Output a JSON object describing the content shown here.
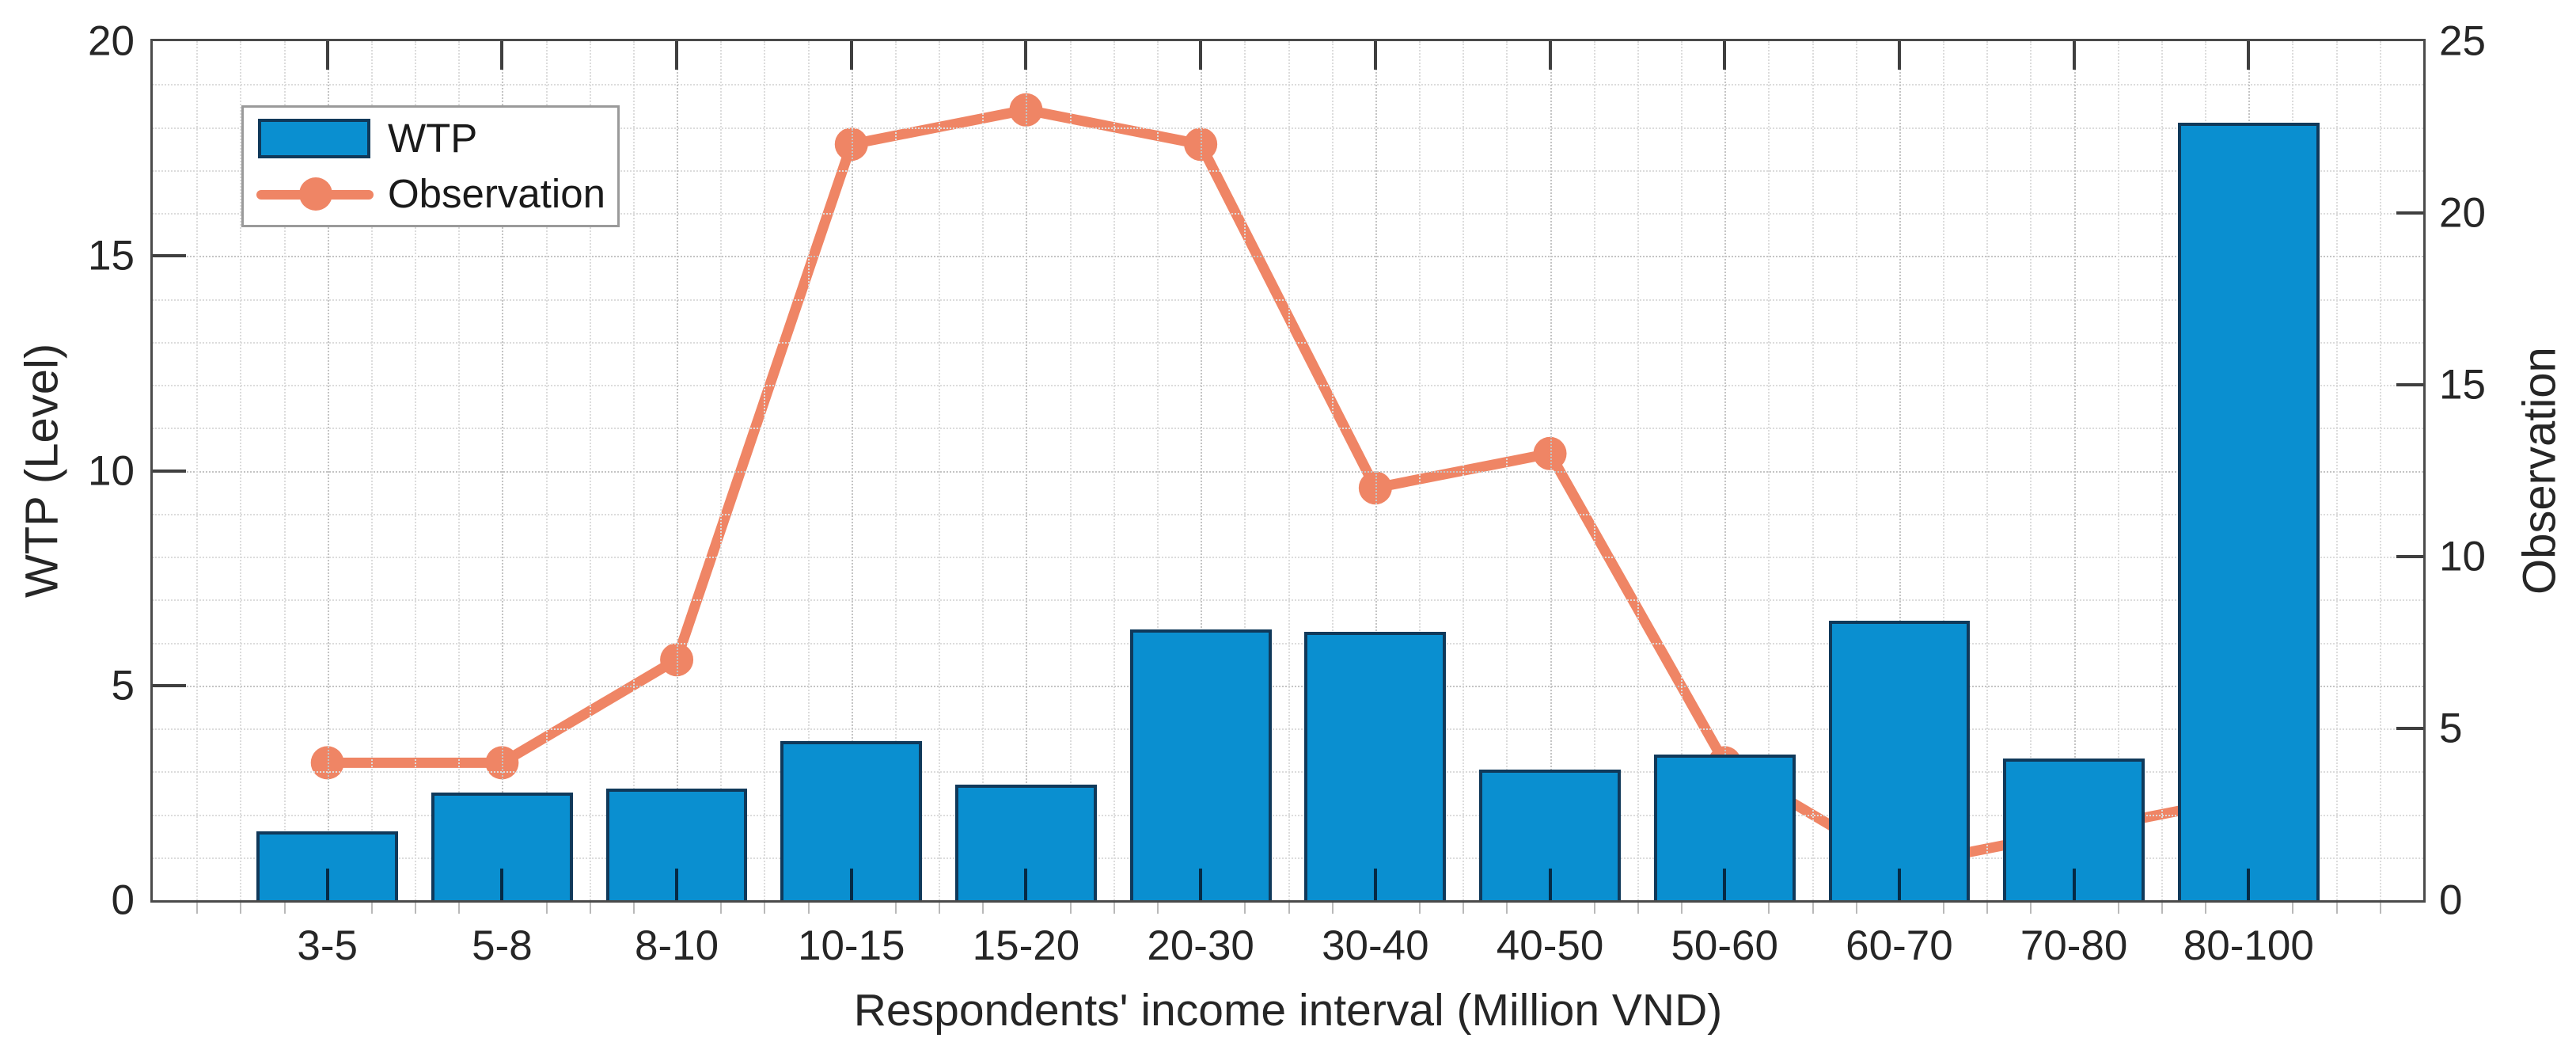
{
  "chart_data": {
    "type": "bar",
    "title": "",
    "categories": [
      "3-5",
      "5-8",
      "8-10",
      "10-15",
      "15-20",
      "20-30",
      "30-40",
      "40-50",
      "50-60",
      "60-70",
      "70-80",
      "80-100"
    ],
    "series": [
      {
        "name": "WTP",
        "type": "bar",
        "axis": "left",
        "values": [
          1.6,
          2.5,
          2.6,
          3.7,
          2.7,
          6.3,
          6.25,
          3.05,
          3.4,
          6.5,
          3.3,
          18.1
        ]
      },
      {
        "name": "Observation",
        "type": "line",
        "axis": "right",
        "values": [
          4,
          4,
          7,
          22,
          23,
          22,
          12,
          13,
          4,
          1,
          2,
          3
        ]
      }
    ],
    "xlabel": "Respondents' income interval (Million VND)",
    "left_axis": {
      "label": "WTP (Level)",
      "min": 0,
      "max": 20,
      "ticks": [
        0,
        5,
        10,
        15,
        20
      ],
      "minor_step": 1
    },
    "right_axis": {
      "label": "Observation",
      "min": 0,
      "max": 25,
      "ticks": [
        0,
        5,
        10,
        15,
        20,
        25
      ]
    },
    "legend": {
      "position": "top-left",
      "entries": [
        "WTP",
        "Observation"
      ]
    },
    "grid": "minor dotted grid on, both axes"
  },
  "colors": {
    "bar_fill": "#0a8fd0",
    "bar_edge": "#10395a",
    "line": "#ef8565",
    "axis": "#4a4a4a",
    "grid_minor": "#dcdcdc",
    "grid_major": "#c4c4c4",
    "text": "#262626",
    "legend_border": "#9a9a9a",
    "background": "#ffffff"
  }
}
